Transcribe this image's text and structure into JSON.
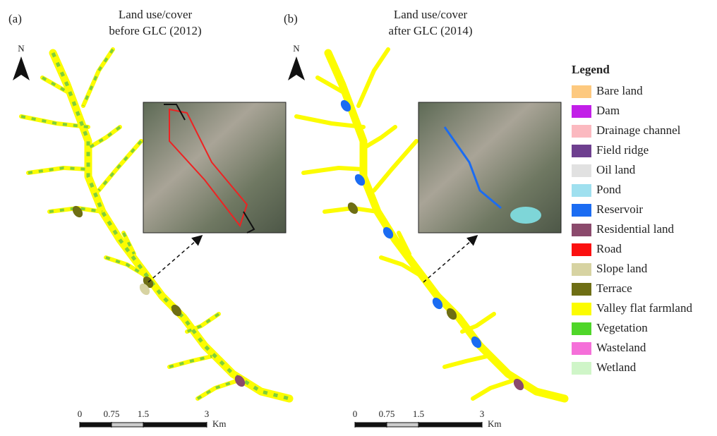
{
  "panels": [
    {
      "label": "(a)",
      "title": [
        "Land use/cover",
        "before GLC (2012)"
      ],
      "north": "N",
      "scale": {
        "ticks": [
          0,
          0.75,
          1.5,
          3
        ],
        "unit": "Km"
      }
    },
    {
      "label": "(b)",
      "title": [
        "Land use/cover",
        "after GLC (2014)"
      ],
      "north": "N",
      "scale": {
        "ticks": [
          0,
          0.75,
          1.5,
          3
        ],
        "unit": "Km"
      }
    }
  ],
  "legend": {
    "title": "Legend",
    "items": [
      {
        "name": "Bare land",
        "color": "#fdc97f"
      },
      {
        "name": "Dam",
        "color": "#c21fe8"
      },
      {
        "name": "Drainage channel",
        "color": "#fbb9c0"
      },
      {
        "name": "Field ridge",
        "color": "#6e3f8f"
      },
      {
        "name": "Oil land",
        "color": "#e1e1e1"
      },
      {
        "name": "Pond",
        "color": "#9fe0ef"
      },
      {
        "name": "Reservoir",
        "color": "#1b6cf2"
      },
      {
        "name": "Residential land",
        "color": "#8b4a6c"
      },
      {
        "name": "Road",
        "color": "#fb1010"
      },
      {
        "name": "Slope land",
        "color": "#d7d3a2"
      },
      {
        "name": "Terrace",
        "color": "#6e6e14"
      },
      {
        "name": "Valley flat farmland",
        "color": "#fcfc00"
      },
      {
        "name": "Vegetation",
        "color": "#4fd629"
      },
      {
        "name": "Wasteland",
        "color": "#f56fd9"
      },
      {
        "name": "Wetland",
        "color": "#cff5c8"
      }
    ]
  }
}
